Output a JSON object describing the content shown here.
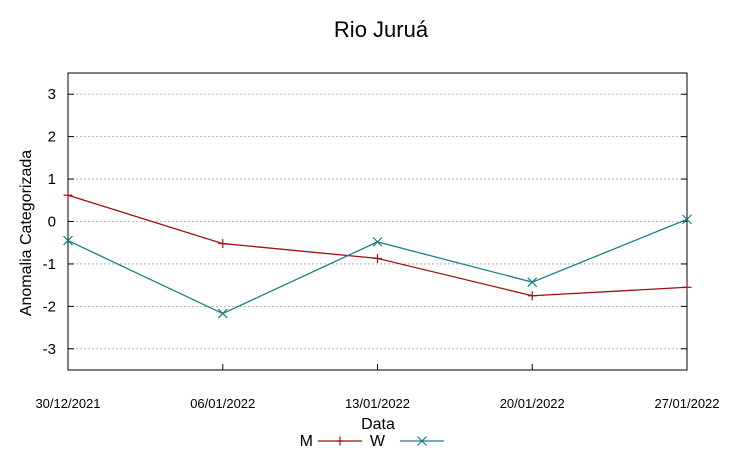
{
  "chart_data": {
    "type": "line",
    "title": "Rio Juruá",
    "xlabel": "Data",
    "ylabel": "Anomalia Categorizada",
    "categories": [
      "30/12/2021",
      "06/01/2022",
      "13/01/2022",
      "20/01/2022",
      "27/01/2022"
    ],
    "yticks": [
      "3",
      "2",
      "1",
      "0",
      "-1",
      "-2",
      "-3"
    ],
    "ylim": [
      -3.5,
      3.5
    ],
    "grid": true,
    "legend_position": "bottom",
    "series": [
      {
        "name": "M",
        "color": "#a01010",
        "marker": "plus",
        "values": [
          0.62,
          -0.52,
          -0.87,
          -1.75,
          -1.55
        ]
      },
      {
        "name": "W",
        "color": "#1a7f86",
        "marker": "cross",
        "values": [
          -0.45,
          -2.17,
          -0.48,
          -1.43,
          0.05
        ]
      }
    ]
  }
}
